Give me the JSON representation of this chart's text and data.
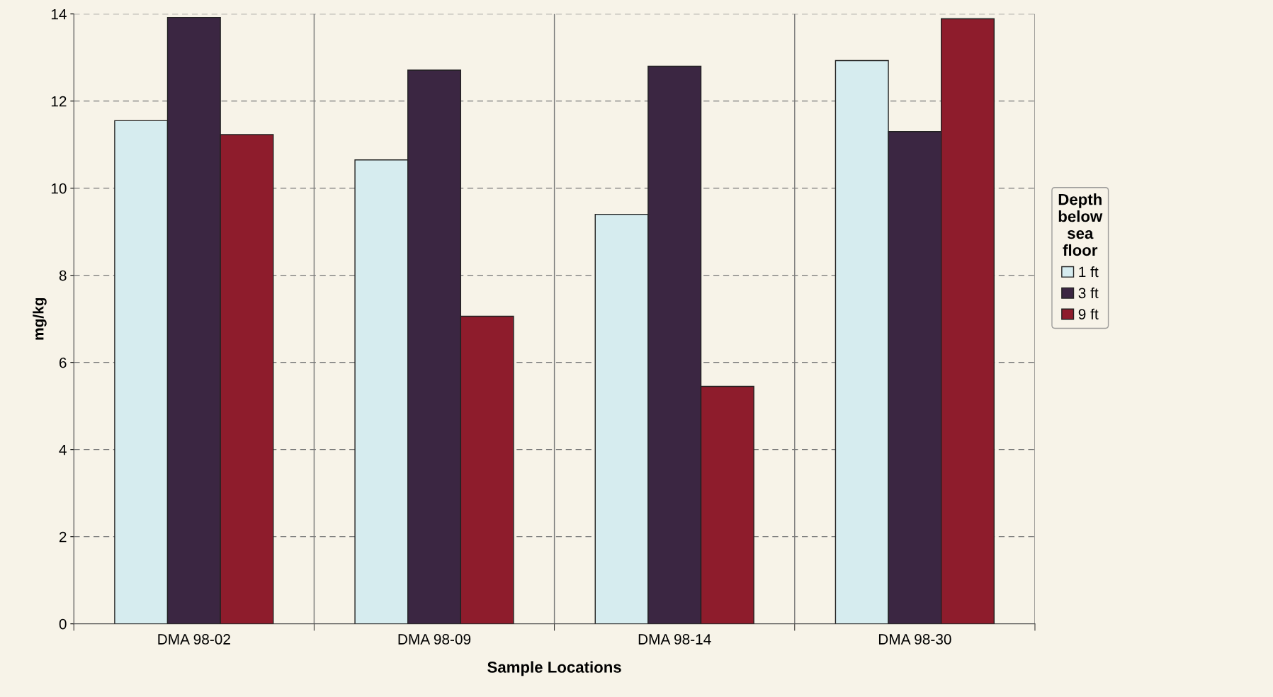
{
  "chart_data": {
    "type": "bar",
    "xlabel": "Sample Locations",
    "ylabel": "mg/kg",
    "legend_title": "Depth\nbelow\nsea\nfloor",
    "categories": [
      "DMA 98-02",
      "DMA 98-09",
      "DMA 98-14",
      "DMA 98-30"
    ],
    "series": [
      {
        "name": "1 ft",
        "color": "#d6ecef",
        "values": [
          11.55,
          10.65,
          9.4,
          12.93
        ]
      },
      {
        "name": "3 ft",
        "color": "#3b2642",
        "values": [
          13.92,
          12.71,
          12.8,
          11.3
        ]
      },
      {
        "name": "9 ft",
        "color": "#8e1c2c",
        "values": [
          11.23,
          7.06,
          5.45,
          13.89
        ]
      }
    ],
    "ylim": [
      0,
      14
    ],
    "yticks": [
      0,
      2,
      4,
      6,
      8,
      10,
      12,
      14
    ],
    "grid": true,
    "legend": "right"
  }
}
